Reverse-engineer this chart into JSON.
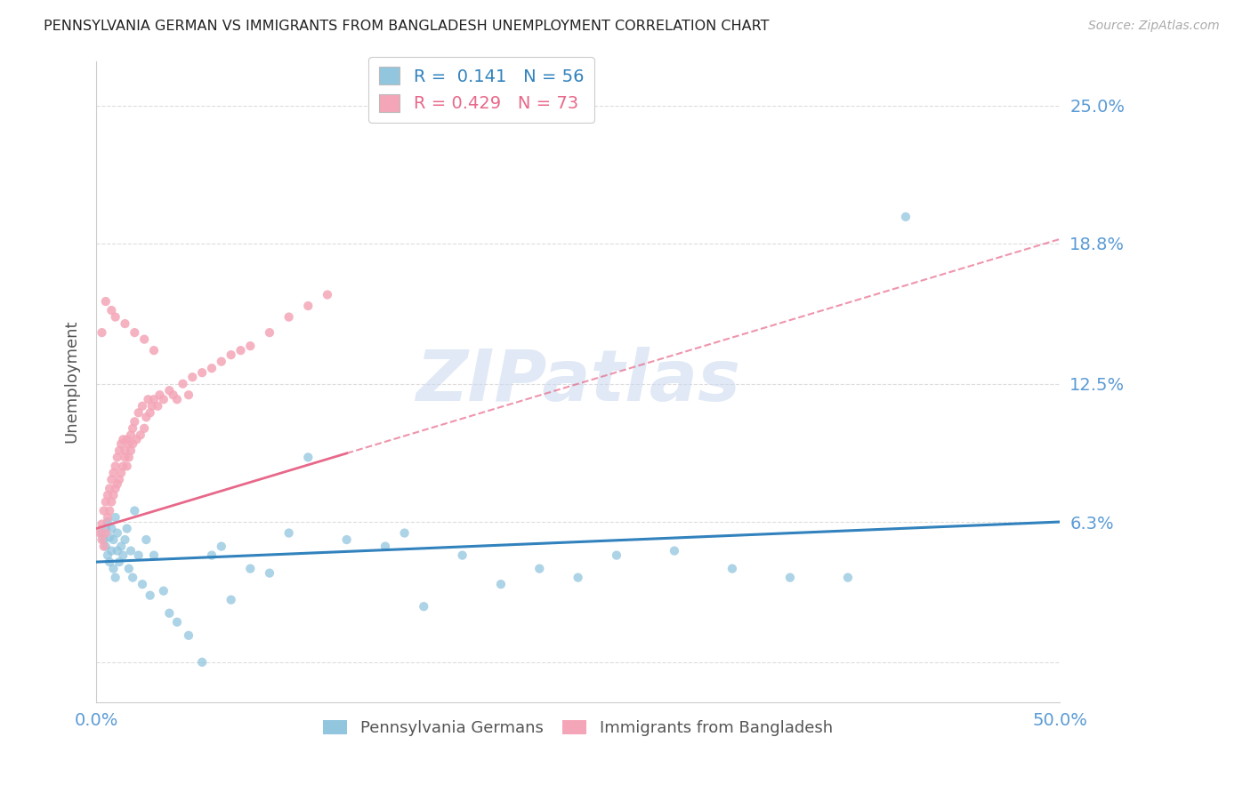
{
  "title": "PENNSYLVANIA GERMAN VS IMMIGRANTS FROM BANGLADESH UNEMPLOYMENT CORRELATION CHART",
  "source": "Source: ZipAtlas.com",
  "ylabel": "Unemployment",
  "x_min": 0.0,
  "x_max": 0.5,
  "y_min": -0.018,
  "y_max": 0.27,
  "yticks": [
    0.0,
    0.063,
    0.125,
    0.188,
    0.25
  ],
  "ytick_labels": [
    "",
    "6.3%",
    "12.5%",
    "18.8%",
    "25.0%"
  ],
  "xtick_labels": [
    "0.0%",
    "50.0%"
  ],
  "xticks": [
    0.0,
    0.5
  ],
  "blue_color": "#92c5de",
  "pink_color": "#f4a6b8",
  "blue_line_color": "#3182bd",
  "pink_line_color": "#e8688a",
  "R_blue": 0.141,
  "N_blue": 56,
  "R_pink": 0.429,
  "N_pink": 73,
  "legend_label_blue": "Pennsylvania Germans",
  "legend_label_pink": "Immigrants from Bangladesh",
  "watermark": "ZIPatlas",
  "blue_scatter_x": [
    0.003,
    0.004,
    0.005,
    0.005,
    0.006,
    0.006,
    0.007,
    0.007,
    0.008,
    0.008,
    0.009,
    0.009,
    0.01,
    0.01,
    0.011,
    0.011,
    0.012,
    0.013,
    0.014,
    0.015,
    0.016,
    0.017,
    0.018,
    0.019,
    0.02,
    0.022,
    0.024,
    0.026,
    0.028,
    0.03,
    0.035,
    0.038,
    0.042,
    0.048,
    0.055,
    0.06,
    0.065,
    0.07,
    0.08,
    0.09,
    0.1,
    0.11,
    0.13,
    0.15,
    0.16,
    0.17,
    0.19,
    0.21,
    0.23,
    0.25,
    0.27,
    0.3,
    0.33,
    0.36,
    0.39,
    0.42
  ],
  "blue_scatter_y": [
    0.058,
    0.055,
    0.06,
    0.052,
    0.063,
    0.048,
    0.056,
    0.045,
    0.06,
    0.05,
    0.055,
    0.042,
    0.065,
    0.038,
    0.058,
    0.05,
    0.045,
    0.052,
    0.048,
    0.055,
    0.06,
    0.042,
    0.05,
    0.038,
    0.068,
    0.048,
    0.035,
    0.055,
    0.03,
    0.048,
    0.032,
    0.022,
    0.018,
    0.012,
    0.0,
    0.048,
    0.052,
    0.028,
    0.042,
    0.04,
    0.058,
    0.092,
    0.055,
    0.052,
    0.058,
    0.025,
    0.048,
    0.035,
    0.042,
    0.038,
    0.048,
    0.05,
    0.042,
    0.038,
    0.038,
    0.2
  ],
  "pink_scatter_x": [
    0.002,
    0.003,
    0.003,
    0.004,
    0.004,
    0.005,
    0.005,
    0.006,
    0.006,
    0.007,
    0.007,
    0.008,
    0.008,
    0.009,
    0.009,
    0.01,
    0.01,
    0.011,
    0.011,
    0.012,
    0.012,
    0.013,
    0.013,
    0.014,
    0.014,
    0.015,
    0.015,
    0.016,
    0.016,
    0.017,
    0.017,
    0.018,
    0.018,
    0.019,
    0.019,
    0.02,
    0.021,
    0.022,
    0.023,
    0.024,
    0.025,
    0.026,
    0.027,
    0.028,
    0.029,
    0.03,
    0.032,
    0.033,
    0.035,
    0.038,
    0.04,
    0.042,
    0.045,
    0.048,
    0.05,
    0.055,
    0.06,
    0.065,
    0.07,
    0.075,
    0.08,
    0.09,
    0.1,
    0.11,
    0.12,
    0.003,
    0.005,
    0.008,
    0.01,
    0.015,
    0.02,
    0.025,
    0.03
  ],
  "pink_scatter_y": [
    0.058,
    0.062,
    0.055,
    0.068,
    0.052,
    0.072,
    0.058,
    0.075,
    0.065,
    0.078,
    0.068,
    0.082,
    0.072,
    0.085,
    0.075,
    0.088,
    0.078,
    0.092,
    0.08,
    0.095,
    0.082,
    0.098,
    0.085,
    0.1,
    0.088,
    0.095,
    0.092,
    0.1,
    0.088,
    0.098,
    0.092,
    0.102,
    0.095,
    0.105,
    0.098,
    0.108,
    0.1,
    0.112,
    0.102,
    0.115,
    0.105,
    0.11,
    0.118,
    0.112,
    0.115,
    0.118,
    0.115,
    0.12,
    0.118,
    0.122,
    0.12,
    0.118,
    0.125,
    0.12,
    0.128,
    0.13,
    0.132,
    0.135,
    0.138,
    0.14,
    0.142,
    0.148,
    0.155,
    0.16,
    0.165,
    0.148,
    0.162,
    0.158,
    0.155,
    0.152,
    0.148,
    0.145,
    0.14
  ],
  "grid_color": "#dddddd",
  "bg_color": "#ffffff",
  "right_label_color": "#5b9bd5",
  "tick_label_color": "#5b9bd5"
}
